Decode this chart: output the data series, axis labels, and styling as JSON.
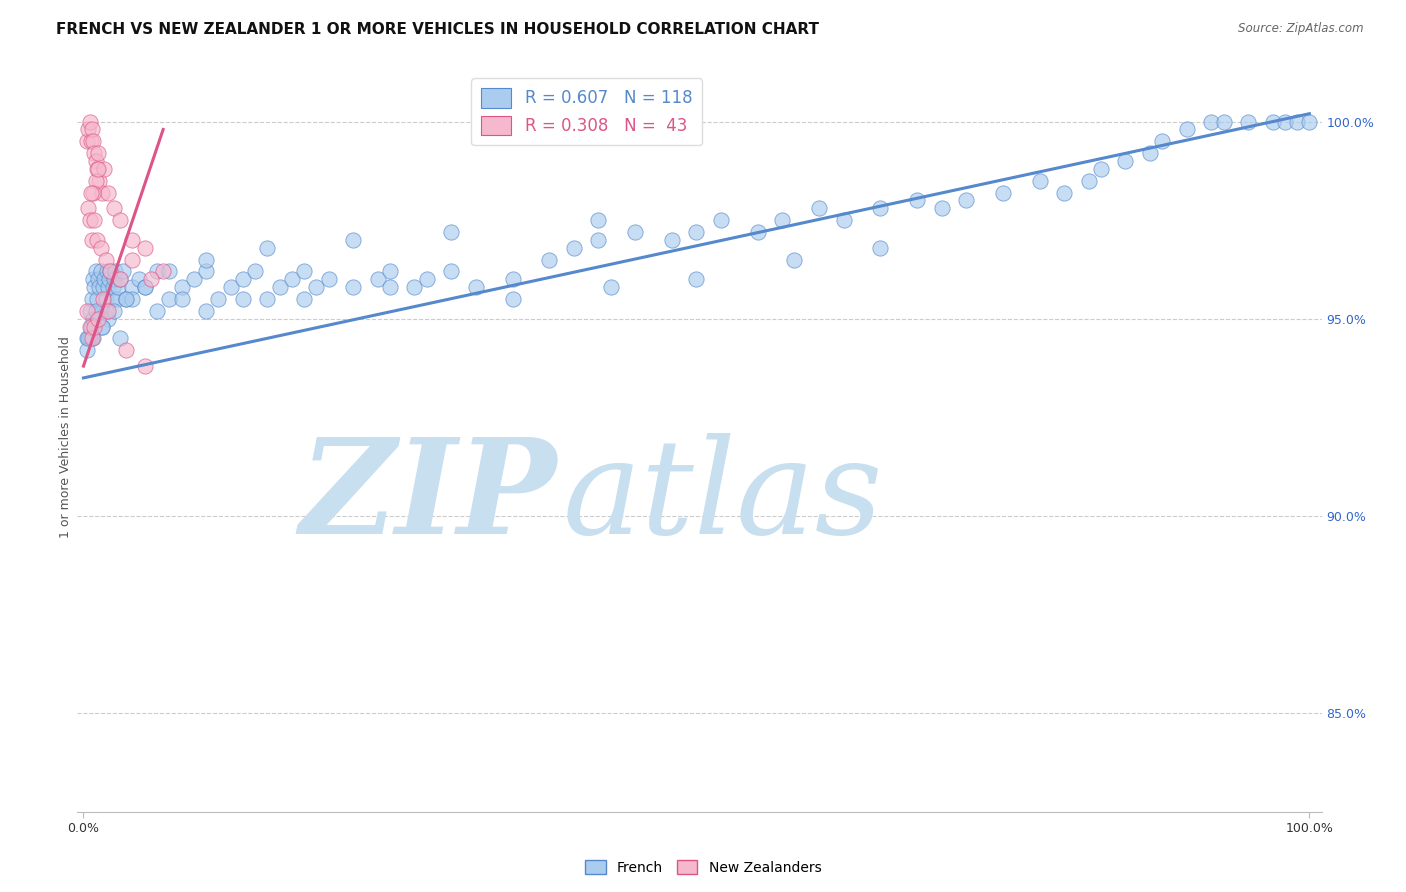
{
  "title": "FRENCH VS NEW ZEALANDER 1 OR MORE VEHICLES IN HOUSEHOLD CORRELATION CHART",
  "source": "Source: ZipAtlas.com",
  "ylabel": "1 or more Vehicles in Household",
  "right_yticks": [
    85.0,
    90.0,
    95.0,
    100.0
  ],
  "watermark_zip": "ZIP",
  "watermark_atlas": "atlas",
  "legend_french_r": "R = 0.607",
  "legend_french_n": "N = 118",
  "legend_nz_r": "R = 0.308",
  "legend_nz_n": "N =  43",
  "french_color": "#aaccee",
  "french_edge_color": "#5588cc",
  "nz_color": "#f5b8cc",
  "nz_edge_color": "#dd5588",
  "french_x": [
    0.3,
    0.5,
    0.6,
    0.7,
    0.8,
    0.9,
    1.0,
    1.1,
    1.2,
    1.3,
    1.4,
    1.5,
    1.6,
    1.7,
    1.8,
    1.9,
    2.0,
    2.1,
    2.2,
    2.3,
    2.4,
    2.5,
    2.6,
    2.7,
    2.8,
    3.0,
    3.2,
    3.5,
    4.0,
    4.5,
    5.0,
    6.0,
    7.0,
    8.0,
    9.0,
    10.0,
    11.0,
    12.0,
    13.0,
    14.0,
    15.0,
    16.0,
    17.0,
    18.0,
    19.0,
    20.0,
    22.0,
    24.0,
    25.0,
    27.0,
    28.0,
    30.0,
    32.0,
    35.0,
    38.0,
    40.0,
    42.0,
    45.0,
    48.0,
    50.0,
    52.0,
    55.0,
    57.0,
    60.0,
    62.0,
    65.0,
    68.0,
    70.0,
    72.0,
    75.0,
    78.0,
    80.0,
    82.0,
    83.0,
    85.0,
    87.0,
    88.0,
    90.0,
    92.0,
    93.0,
    95.0,
    97.0,
    98.0,
    99.0,
    100.0,
    3.0,
    2.0,
    1.5,
    1.8,
    4.0,
    6.0,
    8.0,
    10.0,
    13.0,
    18.0,
    25.0,
    35.0,
    43.0,
    50.0,
    58.0,
    65.0,
    42.0,
    30.0,
    22.0,
    15.0,
    10.0,
    7.0,
    5.0,
    3.5,
    2.5,
    1.5,
    0.8,
    0.5,
    0.3,
    0.4,
    0.6,
    0.8,
    1.0
  ],
  "french_y": [
    94.5,
    95.2,
    94.8,
    95.5,
    96.0,
    95.8,
    96.2,
    95.5,
    96.0,
    95.8,
    96.2,
    95.2,
    95.8,
    96.0,
    95.5,
    96.2,
    95.8,
    96.0,
    96.2,
    95.5,
    95.8,
    96.0,
    96.2,
    95.5,
    95.8,
    96.0,
    96.2,
    95.5,
    95.8,
    96.0,
    95.8,
    96.2,
    95.5,
    95.8,
    96.0,
    96.2,
    95.5,
    95.8,
    96.0,
    96.2,
    95.5,
    95.8,
    96.0,
    96.2,
    95.8,
    96.0,
    95.8,
    96.0,
    96.2,
    95.8,
    96.0,
    96.2,
    95.8,
    96.0,
    96.5,
    96.8,
    97.0,
    97.2,
    97.0,
    97.2,
    97.5,
    97.2,
    97.5,
    97.8,
    97.5,
    97.8,
    98.0,
    97.8,
    98.0,
    98.2,
    98.5,
    98.2,
    98.5,
    98.8,
    99.0,
    99.2,
    99.5,
    99.8,
    100.0,
    100.0,
    100.0,
    100.0,
    100.0,
    100.0,
    100.0,
    94.5,
    95.0,
    94.8,
    95.2,
    95.5,
    95.2,
    95.5,
    95.2,
    95.5,
    95.5,
    95.8,
    95.5,
    95.8,
    96.0,
    96.5,
    96.8,
    97.5,
    97.2,
    97.0,
    96.8,
    96.5,
    96.2,
    95.8,
    95.5,
    95.2,
    94.8,
    94.5,
    94.5,
    94.2,
    94.5,
    94.8,
    95.0,
    95.2
  ],
  "nz_x": [
    0.3,
    0.4,
    0.5,
    0.6,
    0.7,
    0.8,
    0.9,
    1.0,
    1.1,
    1.2,
    1.3,
    1.5,
    1.7,
    2.0,
    2.5,
    3.0,
    4.0,
    5.0,
    6.5,
    1.0,
    0.8,
    1.2,
    0.6,
    0.4,
    0.5,
    0.7,
    0.9,
    1.1,
    1.4,
    1.8,
    2.2,
    3.0,
    4.0,
    5.5,
    0.3,
    0.5,
    0.7,
    0.9,
    1.2,
    1.6,
    2.0,
    3.5,
    5.0
  ],
  "nz_y": [
    99.5,
    99.8,
    100.0,
    99.5,
    99.8,
    99.5,
    99.2,
    99.0,
    98.8,
    99.2,
    98.5,
    98.2,
    98.8,
    98.2,
    97.8,
    97.5,
    97.0,
    96.8,
    96.2,
    98.5,
    98.2,
    98.8,
    98.2,
    97.8,
    97.5,
    97.0,
    97.5,
    97.0,
    96.8,
    96.5,
    96.2,
    96.0,
    96.5,
    96.0,
    95.2,
    94.8,
    94.5,
    94.8,
    95.0,
    95.5,
    95.2,
    94.2,
    93.8
  ],
  "blue_trend_x": [
    0.0,
    100.0
  ],
  "blue_trend_y": [
    93.5,
    100.2
  ],
  "pink_trend_x": [
    0.0,
    6.5
  ],
  "pink_trend_y": [
    93.8,
    99.8
  ],
  "ylim": [
    82.5,
    101.5
  ],
  "xlim": [
    -0.5,
    101.0
  ],
  "grid_yticks": [
    85.0,
    90.0,
    95.0,
    100.0
  ],
  "bg_color": "#ffffff",
  "watermark_color": "#ddeeff",
  "grid_color": "#cccccc",
  "marker_size": 120
}
